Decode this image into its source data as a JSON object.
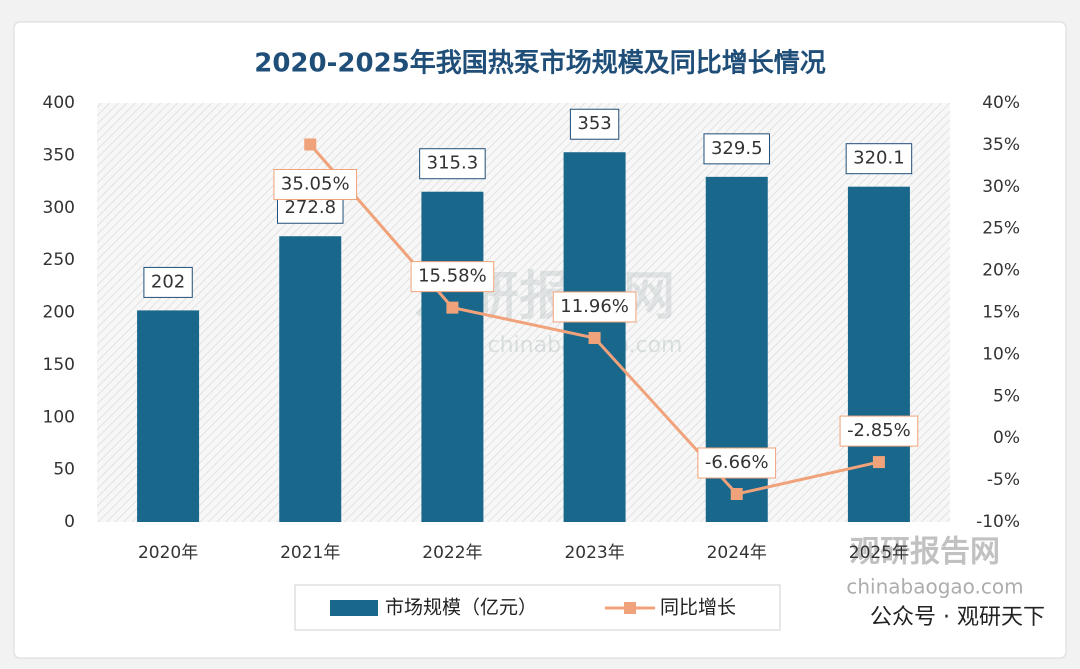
{
  "chart_data": {
    "type": "bar_line",
    "title": "2020-2025年我国热泵市场规模及同比增长情况",
    "categories": [
      "2020年",
      "2021年",
      "2022年",
      "2023年",
      "2024年",
      "2025年"
    ],
    "series": [
      {
        "name": "市场规模（亿元）",
        "color": "#19678b",
        "type": "bar",
        "values": [
          202,
          272.8,
          315.3,
          353,
          329.5,
          320.1
        ]
      },
      {
        "name": "同比增长",
        "color": "#f0a27a",
        "type": "line",
        "axis": "y2",
        "values": [
          null,
          35.05,
          15.58,
          11.96,
          -6.66,
          -2.85
        ],
        "value_labels": [
          null,
          "35.05%",
          "15.58%",
          "11.96%",
          "-6.66%",
          "-2.85%"
        ]
      }
    ],
    "ylim": [
      0,
      400
    ],
    "yticks": [
      0,
      50,
      100,
      150,
      200,
      250,
      300,
      350,
      400
    ],
    "y2lim": [
      -10,
      40
    ],
    "y2ticks": [
      {
        "value": -10,
        "label": "-10%"
      },
      {
        "value": -5,
        "label": "-5%"
      },
      {
        "value": 0,
        "label": "0%"
      },
      {
        "value": 5,
        "label": "5%"
      },
      {
        "value": 10,
        "label": "10%"
      },
      {
        "value": 15,
        "label": "15%"
      },
      {
        "value": 20,
        "label": "20%"
      },
      {
        "value": 25,
        "label": "25%"
      },
      {
        "value": 30,
        "label": "30%"
      },
      {
        "value": 35,
        "label": "35%"
      },
      {
        "value": 40,
        "label": "40%"
      }
    ],
    "grid": false,
    "watermark": [
      "观研报告网",
      "chinabaogao.com"
    ],
    "footer": "公众号 · 观研天下"
  }
}
